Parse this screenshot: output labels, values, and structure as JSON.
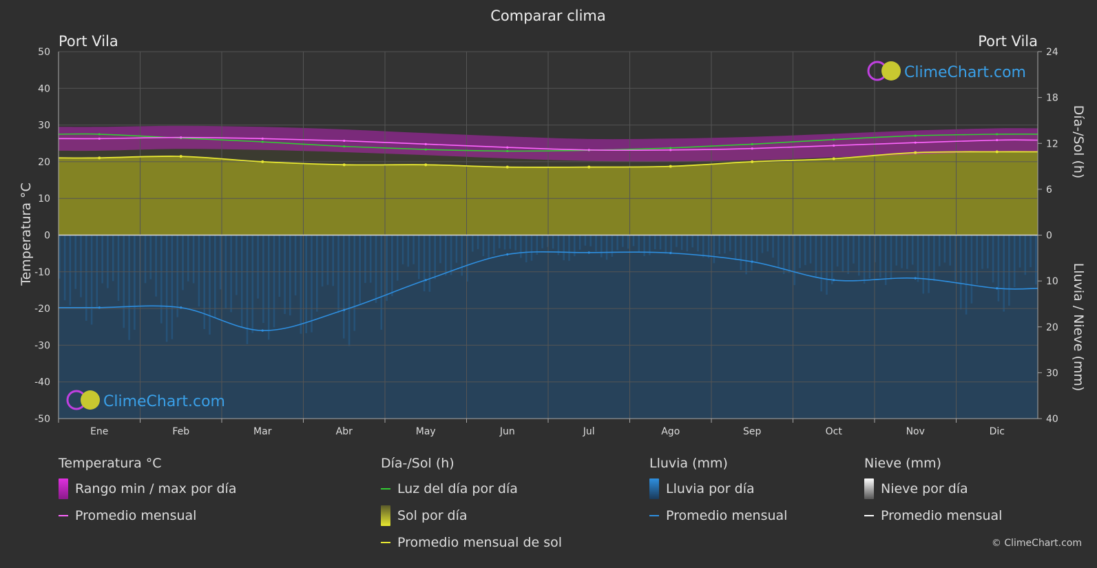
{
  "page": {
    "title": "Comparar clima",
    "location_left": "Port Vila",
    "location_right": "Port Vila",
    "copyright": "© ClimeChart.com",
    "watermark": "ClimeChart.com"
  },
  "legend": {
    "temperature": {
      "header": "Temperatura °C",
      "range_label": "Rango min / max por día",
      "avg_label": "Promedio mensual"
    },
    "daylight": {
      "header": "Día-/Sol (h)",
      "daylight_label": "Luz del día por día",
      "sun_label": "Sol por día",
      "sun_avg_label": "Promedio mensual de sol"
    },
    "rain": {
      "header": "Lluvia (mm)",
      "rain_label": "Lluvia por día",
      "avg_label": "Promedio mensual"
    },
    "snow": {
      "header": "Nieve (mm)",
      "snow_label": "Nieve por día",
      "avg_label": "Promedio mensual"
    }
  },
  "chart_data": {
    "type": "line",
    "months": [
      "Ene",
      "Feb",
      "Mar",
      "Abr",
      "May",
      "Jun",
      "Jul",
      "Ago",
      "Sep",
      "Oct",
      "Nov",
      "Dic"
    ],
    "y_left": {
      "label": "Temperatura °C",
      "min": -50,
      "max": 50,
      "ticks": [
        50,
        40,
        30,
        20,
        10,
        0,
        -10,
        -20,
        -30,
        -40,
        -50
      ]
    },
    "y_right_top": {
      "label": "Día-/Sol (h)",
      "min": 0,
      "max": 24,
      "ticks": [
        24,
        18,
        12,
        6,
        0
      ]
    },
    "y_right_bottom": {
      "label": "Lluvia / Nieve (mm)",
      "min": 0,
      "max": 40,
      "ticks": [
        0,
        10,
        20,
        30,
        40
      ]
    },
    "series": [
      {
        "name": "Luz del día por día",
        "unit": "h",
        "color": "#33cc33",
        "values": [
          13.2,
          12.7,
          12.2,
          11.6,
          11.2,
          11.0,
          11.1,
          11.4,
          11.9,
          12.5,
          13.0,
          13.2
        ]
      },
      {
        "name": "Promedio mensual de sol",
        "unit": "h",
        "color": "#e8e833",
        "values": [
          10.1,
          10.3,
          9.6,
          9.2,
          9.2,
          8.9,
          8.9,
          9.0,
          9.6,
          10.0,
          10.8,
          10.9
        ]
      },
      {
        "name": "Temperatura promedio mensual",
        "unit": "°C",
        "color": "#ff66ff",
        "values": [
          26.3,
          26.6,
          26.3,
          25.7,
          24.8,
          23.9,
          23.2,
          23.2,
          23.6,
          24.4,
          25.2,
          25.9
        ]
      },
      {
        "name": "Lluvia promedio mensual",
        "unit": "mm",
        "color": "#2e8fe0",
        "values": [
          15.8,
          15.8,
          20.8,
          16.3,
          9.8,
          4.2,
          3.8,
          3.9,
          5.8,
          9.8,
          9.4,
          11.6
        ]
      },
      {
        "name": "Rango min / max por día",
        "unit": "°C",
        "color": "#e020e0",
        "min": [
          23.0,
          23.5,
          23.2,
          22.6,
          21.8,
          20.9,
          20.2,
          20.1,
          20.4,
          21.2,
          22.0,
          22.7
        ],
        "max": [
          29.5,
          29.8,
          29.5,
          28.8,
          27.8,
          26.9,
          26.2,
          26.3,
          26.8,
          27.6,
          28.5,
          29.1
        ]
      }
    ],
    "grid": true
  },
  "colors": {
    "background": "#2f2f2f",
    "grid": "#555555",
    "sun_fill": "#8c8c22",
    "rain_fill": "#1e4f7a",
    "temp_range": "#d020d0",
    "snow": "#ffffff"
  }
}
